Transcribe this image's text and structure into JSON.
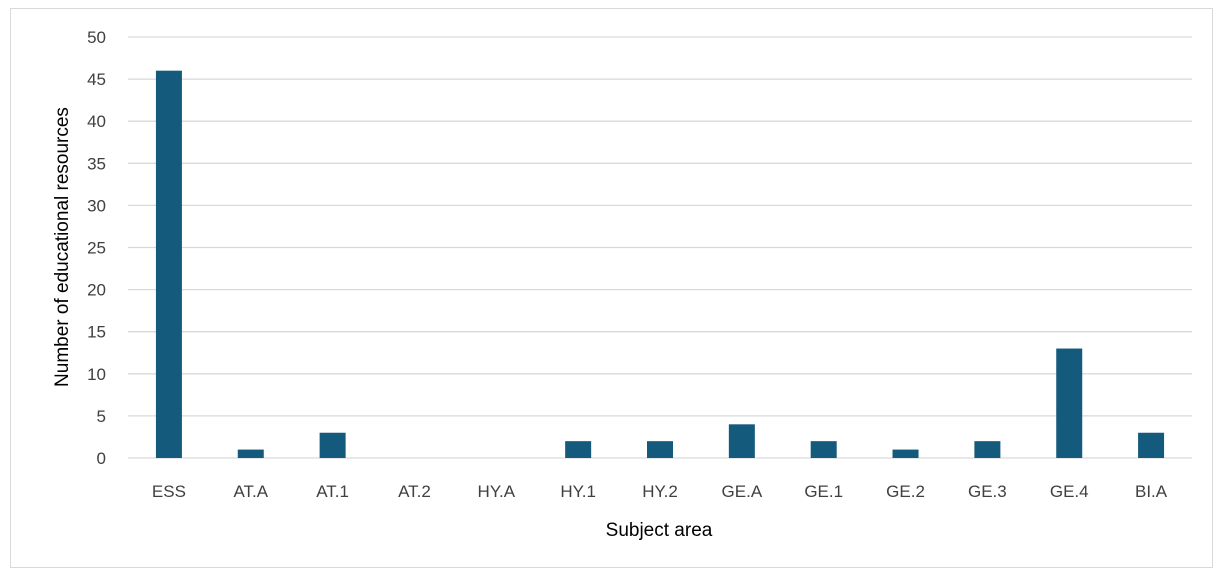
{
  "chart_data": {
    "type": "bar",
    "title": "",
    "xlabel": "Subject area",
    "ylabel": "Number of educational resources",
    "categories": [
      "ESS",
      "AT.A",
      "AT.1",
      "AT.2",
      "HY.A",
      "HY.1",
      "HY.2",
      "GE.A",
      "GE.1",
      "GE.2",
      "GE.3",
      "GE.4",
      "BI.A"
    ],
    "values": [
      46,
      1,
      3,
      0,
      0,
      2,
      2,
      4,
      2,
      1,
      2,
      13,
      3
    ],
    "ylim": [
      0,
      50
    ],
    "yticks": [
      0,
      5,
      10,
      15,
      20,
      25,
      30,
      35,
      40,
      45,
      50
    ],
    "grid": true,
    "legend": "none",
    "bar_color": "#145a7d",
    "grid_color": "#d9d9d9"
  }
}
